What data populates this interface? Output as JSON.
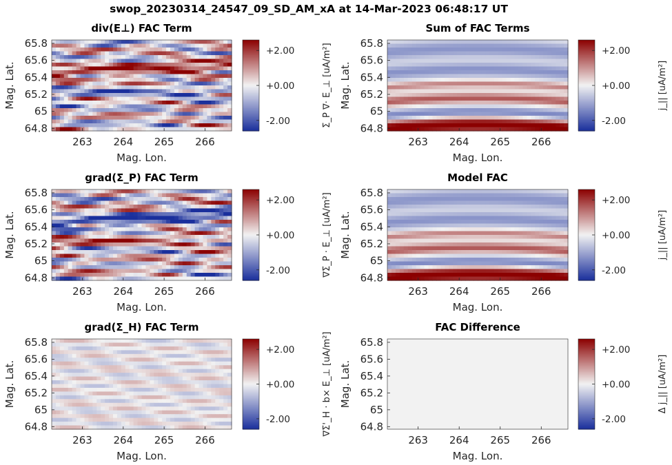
{
  "figure_title": "swop_20230314_24547_09_SD_AM_xA at 14-Mar-2023 06:48:17 UT",
  "colormap": {
    "low": "#1a2f9c",
    "mid": "#f2f2f2",
    "high": "#8b0000"
  },
  "chart_data": [
    {
      "type": "heatmap",
      "title_parts": [
        "div(E",
        "⊥",
        ") FAC Term"
      ],
      "title_sub": "⊥",
      "xlabel": "Mag. Lon.",
      "ylabel": "Mag. Lat.",
      "xticks": [
        "263",
        "264",
        "265",
        "266"
      ],
      "yticks": [
        "65.8",
        "65.6",
        "65.4",
        "65.2",
        "65",
        "64.8"
      ],
      "x_range": [
        262.25,
        266.65
      ],
      "y_range": [
        64.77,
        65.84
      ],
      "colorbar": {
        "ticks": [
          "+2.00",
          "+0.00",
          "-2.00"
        ],
        "range": [
          -2.6,
          2.6
        ],
        "label": "Σ_P ∇· E_⊥ [uA/m²]"
      },
      "pattern": "turbulent",
      "amplitude": 1.0
    },
    {
      "type": "heatmap",
      "title": "Sum of FAC Terms",
      "xlabel": "Mag. Lon.",
      "ylabel": "Mag. Lat.",
      "xticks": [
        "263",
        "264",
        "265",
        "266"
      ],
      "yticks": [
        "65.8",
        "65.6",
        "65.4",
        "65.2",
        "65",
        "64.8"
      ],
      "x_range": [
        262.25,
        266.65
      ],
      "y_range": [
        64.77,
        65.84
      ],
      "colorbar": {
        "ticks": [
          "+2.00",
          "+0.00",
          "-2.00"
        ],
        "range": [
          -2.6,
          2.6
        ],
        "label": "j_|| [uA/m²]"
      },
      "pattern": "arc",
      "amplitude": 1.0
    },
    {
      "type": "heatmap",
      "title": "grad(Σ_P) FAC Term",
      "xlabel": "Mag. Lon.",
      "ylabel": "Mag. Lat.",
      "xticks": [
        "263",
        "264",
        "265",
        "266"
      ],
      "yticks": [
        "65.8",
        "65.6",
        "65.4",
        "65.2",
        "65",
        "64.8"
      ],
      "x_range": [
        262.25,
        266.65
      ],
      "y_range": [
        64.77,
        65.84
      ],
      "colorbar": {
        "ticks": [
          "+2.00",
          "+0.00",
          "-2.00"
        ],
        "range": [
          -2.6,
          2.6
        ],
        "label": "∇Σ_P · E_⊥ [uA/m²]"
      },
      "pattern": "turbulent_inv",
      "amplitude": 1.0
    },
    {
      "type": "heatmap",
      "title": "Model FAC",
      "xlabel": "Mag. Lon.",
      "ylabel": "Mag. Lat.",
      "xticks": [
        "263",
        "264",
        "265",
        "266"
      ],
      "yticks": [
        "65.8",
        "65.6",
        "65.4",
        "65.2",
        "65",
        "64.8"
      ],
      "x_range": [
        262.25,
        266.65
      ],
      "y_range": [
        64.77,
        65.84
      ],
      "colorbar": {
        "ticks": [
          "+2.00",
          "+0.00",
          "-2.00"
        ],
        "range": [
          -2.6,
          2.6
        ],
        "label": "j_|| [uA/m²]"
      },
      "pattern": "arc",
      "amplitude": 1.0
    },
    {
      "type": "heatmap",
      "title": "grad(Σ_H) FAC Term",
      "xlabel": "Mag. Lon.",
      "ylabel": "Mag. Lat.",
      "xticks": [
        "263",
        "264",
        "265",
        "266"
      ],
      "yticks": [
        "65.8",
        "65.6",
        "65.4",
        "65.2",
        "65",
        "64.8"
      ],
      "x_range": [
        262.25,
        266.65
      ],
      "y_range": [
        64.77,
        65.84
      ],
      "colorbar": {
        "ticks": [
          "+2.00",
          "+0.00",
          "-2.00"
        ],
        "range": [
          -2.6,
          2.6
        ],
        "label": "∇Σ'_H · b× E_⊥ [uA/m²]"
      },
      "pattern": "turbulent_weak",
      "amplitude": 0.25
    },
    {
      "type": "heatmap",
      "title": "FAC Difference",
      "xlabel": "Mag. Lon.",
      "ylabel": "Mag. Lat.",
      "xticks": [
        "263",
        "264",
        "265",
        "266"
      ],
      "yticks": [
        "65.8",
        "65.6",
        "65.4",
        "65.2",
        "65",
        "64.8"
      ],
      "x_range": [
        262.25,
        266.65
      ],
      "y_range": [
        64.77,
        65.84
      ],
      "colorbar": {
        "ticks": [
          "+2.00",
          "+0.00",
          "-2.00"
        ],
        "range": [
          -2.6,
          2.6
        ],
        "label": "Δ j_|| [uA/m²]"
      },
      "pattern": "flat",
      "amplitude": 0.03
    }
  ]
}
